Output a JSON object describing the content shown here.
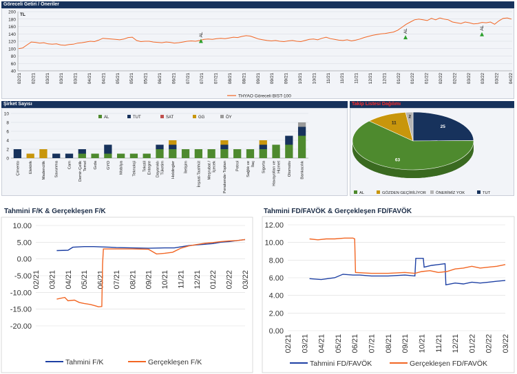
{
  "colors": {
    "navy": "#17325c",
    "green": "#4e8a2e",
    "orange": "#f26522",
    "blue": "#1c3fa3",
    "gold": "#c8960c",
    "sat": "#c0504d",
    "gray": "#9a9a9a",
    "panel_bg": "#f2f4f8"
  },
  "chart_data": [
    {
      "id": "relative",
      "type": "line",
      "title": "Göreceli Getiri / Öneriler",
      "unit_label": "TL",
      "ylim": [
        40,
        200
      ],
      "yticks": [
        40,
        60,
        80,
        100,
        120,
        140,
        160,
        180,
        200
      ],
      "xticks": [
        "02/21",
        "02/21",
        "03/21",
        "03/21",
        "03/21",
        "04/21",
        "04/21",
        "05/21",
        "05/21",
        "05/21",
        "06/21",
        "06/21",
        "07/21",
        "07/21",
        "07/21",
        "08/21",
        "08/21",
        "09/21",
        "09/21",
        "09/21",
        "10/21",
        "10/21",
        "11/21",
        "11/21",
        "11/21",
        "12/21",
        "12/21",
        "01/22",
        "01/22",
        "01/22",
        "02/22",
        "02/22",
        "03/22",
        "03/22",
        "03/22",
        "04/22"
      ],
      "legend": [
        "THYAO Göreceli BIST-100"
      ],
      "series": [
        {
          "name": "THYAO Göreceli BIST-100",
          "values": [
            100,
            102,
            110,
            118,
            117,
            115,
            116,
            113,
            112,
            113,
            110,
            109,
            111,
            112,
            115,
            116,
            118,
            120,
            119,
            123,
            128,
            127,
            126,
            125,
            124,
            126,
            130,
            131,
            122,
            119,
            120,
            120,
            118,
            117,
            116,
            118,
            117,
            115,
            116,
            118,
            120,
            121,
            120,
            122,
            125,
            126,
            125,
            127,
            128,
            127,
            129,
            131,
            130,
            133,
            135,
            134,
            130,
            126,
            124,
            122,
            121,
            122,
            120,
            119,
            121,
            122,
            120,
            119,
            122,
            125,
            126,
            124,
            128,
            131,
            127,
            125,
            123,
            122,
            124,
            121,
            123,
            126,
            130,
            133,
            136,
            138,
            140,
            141,
            143,
            145,
            150,
            158,
            166,
            172,
            178,
            180,
            178,
            176,
            182,
            178,
            183,
            180,
            178,
            172,
            170,
            168,
            172,
            170,
            167,
            168,
            171,
            170,
            172,
            166,
            175,
            182,
            183,
            180
          ]
        }
      ],
      "annotations": [
        {
          "label": "AL",
          "x": 37.0,
          "y": 121
        },
        {
          "label": "AL",
          "x": 78.5,
          "y": 131
        },
        {
          "label": "AL",
          "x": 94.0,
          "y": 139
        }
      ]
    },
    {
      "id": "counts",
      "type": "bar",
      "title": "Şirket Sayısı",
      "ylim": [
        0,
        10
      ],
      "yticks": [
        0,
        2,
        4,
        6,
        8,
        10
      ],
      "categories": [
        "Çimento",
        "Elektrik",
        "Madencilik",
        "Savunma",
        "Cam",
        "Demir-Çelik Temel",
        "Gıda",
        "GYO",
        "Mobilya",
        "Teknoloji",
        "Tekstil Entegre",
        "Dayanıklı Tüketim",
        "Holdingler",
        "İletişim",
        "İnşaat-Taahhüt",
        "Meşrubat / İçecek",
        "Perakende-Toptan",
        "Petrol",
        "Sağlık ve İlaç",
        "Sigorta",
        "Havayolları ve Hizmet",
        "Otomotiv",
        "Bankacılık"
      ],
      "series": [
        {
          "name": "AL",
          "values": [
            0,
            0,
            0,
            0,
            0,
            1,
            1,
            1,
            1,
            1,
            1,
            2,
            2,
            2,
            2,
            2,
            2,
            2,
            2,
            2,
            3,
            3,
            5
          ]
        },
        {
          "name": "TUT",
          "values": [
            2,
            0,
            0,
            1,
            1,
            1,
            0,
            2,
            0,
            0,
            0,
            1,
            1,
            0,
            0,
            0,
            1,
            0,
            0,
            1,
            0,
            2,
            2
          ]
        },
        {
          "name": "SAT",
          "values": [
            0,
            0,
            0,
            0,
            0,
            0,
            0,
            0,
            0,
            0,
            0,
            0,
            0,
            0,
            0,
            0,
            0,
            0,
            0,
            0,
            0,
            0,
            0
          ]
        },
        {
          "name": "GG",
          "values": [
            0,
            1,
            2,
            0,
            0,
            0,
            0,
            0,
            0,
            0,
            0,
            0,
            1,
            0,
            0,
            0,
            1,
            0,
            0,
            1,
            0,
            0,
            0
          ]
        },
        {
          "name": "ÖY",
          "values": [
            0,
            0,
            0,
            0,
            0,
            0,
            0,
            0,
            0,
            0,
            0,
            0,
            0,
            0,
            0,
            0,
            0,
            0,
            0,
            0,
            0,
            0,
            1
          ]
        }
      ]
    },
    {
      "id": "pie",
      "type": "pie",
      "title": "Takip Listesi Dağılımı",
      "slices": [
        {
          "label": "AL",
          "value": 63
        },
        {
          "label": "GÖZDEN GEÇİRİLİYOR",
          "value": 11
        },
        {
          "label": "ÖNERİMİZ YOK",
          "value": 2
        },
        {
          "label": "TUT",
          "value": 25
        }
      ]
    },
    {
      "id": "pe",
      "type": "line",
      "title": "Tahmini F/K & Gerçekleşen F/K",
      "ylim": [
        -20,
        10
      ],
      "yticks": [
        "10.00",
        "5.00",
        "0.00",
        "-5.00",
        "-10.00",
        "-15.00",
        "-20.00"
      ],
      "xticks": [
        "02/21",
        "03/21",
        "04/21",
        "05/21",
        "06/21",
        "07/21",
        "08/21",
        "09/21",
        "10/21",
        "11/21",
        "12/21",
        "01/22",
        "02/22",
        "03/22"
      ],
      "series": [
        {
          "name": "Tahmini F/K",
          "points": [
            [
              2.3,
              2.5
            ],
            [
              3.0,
              2.6
            ],
            [
              3.3,
              3.5
            ],
            [
              4.0,
              3.7
            ],
            [
              4.6,
              3.7
            ],
            [
              5.0,
              3.6
            ],
            [
              5.6,
              3.5
            ],
            [
              6.0,
              3.4
            ],
            [
              7.0,
              3.3
            ],
            [
              8.0,
              3.2
            ],
            [
              9.0,
              3.3
            ],
            [
              9.6,
              3.3
            ],
            [
              10.0,
              3.6
            ],
            [
              10.5,
              4.0
            ],
            [
              11.0,
              4.2
            ],
            [
              11.5,
              4.4
            ],
            [
              12.0,
              4.6
            ],
            [
              12.5,
              5.0
            ],
            [
              13.0,
              5.2
            ],
            [
              13.5,
              5.5
            ],
            [
              14.0,
              5.8
            ]
          ]
        },
        {
          "name": "Gerçekleşen F/K",
          "points": [
            [
              2.3,
              -12.0
            ],
            [
              2.8,
              -11.5
            ],
            [
              3.0,
              -12.5
            ],
            [
              3.4,
              -12.3
            ],
            [
              3.7,
              -13.0
            ],
            [
              4.0,
              -13.3
            ],
            [
              4.4,
              -13.6
            ],
            [
              4.7,
              -14.0
            ],
            [
              4.9,
              -14.3
            ],
            [
              5.1,
              -14.2
            ],
            [
              5.15,
              -1.5
            ],
            [
              5.2,
              3.0
            ],
            [
              6.0,
              3.0
            ],
            [
              7.0,
              3.0
            ],
            [
              8.0,
              2.9
            ],
            [
              8.5,
              1.5
            ],
            [
              9.0,
              1.7
            ],
            [
              9.5,
              2.0
            ],
            [
              10.0,
              3.2
            ],
            [
              10.5,
              3.9
            ],
            [
              11.0,
              4.3
            ],
            [
              11.5,
              4.7
            ],
            [
              12.0,
              4.9
            ],
            [
              12.5,
              5.2
            ],
            [
              13.0,
              5.4
            ],
            [
              13.5,
              5.5
            ],
            [
              14.0,
              5.8
            ]
          ]
        }
      ],
      "legend": [
        "Tahmini F/K",
        "Gerçekleşen F/K"
      ]
    },
    {
      "id": "ev",
      "type": "line",
      "title": "Tahmini FD/FAVÖK & Gerçekleşen FD/FAVÖK",
      "ylim": [
        0,
        12
      ],
      "yticks": [
        "12.00",
        "10.00",
        "8.00",
        "6.00",
        "4.00",
        "2.00",
        "0.00"
      ],
      "xticks": [
        "02/21",
        "03/21",
        "04/21",
        "05/21",
        "06/21",
        "07/21",
        "08/21",
        "09/21",
        "10/21",
        "11/21",
        "12/21",
        "01/22",
        "02/22",
        "03/22"
      ],
      "series": [
        {
          "name": "Tahmini FD/FAVÖK",
          "points": [
            [
              2.3,
              5.9
            ],
            [
              3.0,
              5.8
            ],
            [
              3.8,
              6.0
            ],
            [
              4.3,
              6.4
            ],
            [
              4.9,
              6.3
            ],
            [
              5.3,
              6.3
            ],
            [
              6.0,
              6.2
            ],
            [
              7.0,
              6.2
            ],
            [
              8.0,
              6.3
            ],
            [
              8.6,
              6.2
            ],
            [
              8.65,
              8.2
            ],
            [
              9.1,
              8.2
            ],
            [
              9.15,
              7.2
            ],
            [
              9.6,
              7.4
            ],
            [
              10.0,
              7.5
            ],
            [
              10.4,
              7.6
            ],
            [
              10.45,
              5.2
            ],
            [
              11.0,
              5.4
            ],
            [
              11.5,
              5.3
            ],
            [
              12.0,
              5.5
            ],
            [
              12.5,
              5.4
            ],
            [
              13.0,
              5.5
            ],
            [
              13.5,
              5.6
            ],
            [
              14.0,
              5.7
            ]
          ]
        },
        {
          "name": "Gerçekleşen FD/FAVÖK",
          "points": [
            [
              2.3,
              10.4
            ],
            [
              2.8,
              10.3
            ],
            [
              3.3,
              10.4
            ],
            [
              3.8,
              10.4
            ],
            [
              4.4,
              10.5
            ],
            [
              4.9,
              10.5
            ],
            [
              5.0,
              10.4
            ],
            [
              5.05,
              6.6
            ],
            [
              6.0,
              6.5
            ],
            [
              7.0,
              6.5
            ],
            [
              8.0,
              6.6
            ],
            [
              8.6,
              6.5
            ],
            [
              9.0,
              6.7
            ],
            [
              9.5,
              6.8
            ],
            [
              10.0,
              6.6
            ],
            [
              10.5,
              6.7
            ],
            [
              11.0,
              7.0
            ],
            [
              11.5,
              7.1
            ],
            [
              12.0,
              7.3
            ],
            [
              12.5,
              7.1
            ],
            [
              13.0,
              7.2
            ],
            [
              13.5,
              7.3
            ],
            [
              14.0,
              7.5
            ]
          ]
        }
      ],
      "legend": [
        "Tahmini FD/FAVÖK",
        "Gerçekleşen FD/FAVÖK"
      ]
    }
  ]
}
